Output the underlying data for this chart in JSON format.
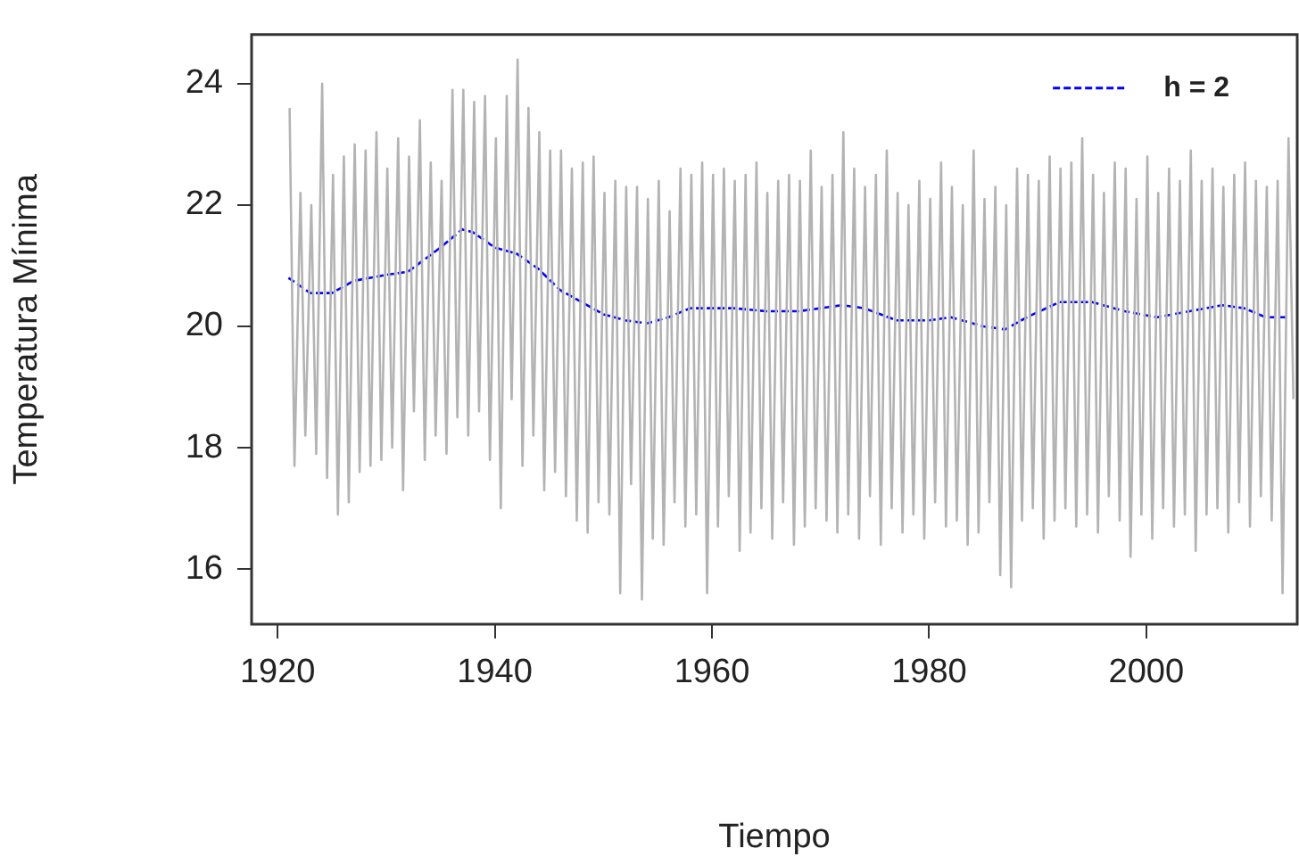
{
  "chart_data": {
    "type": "line",
    "xlabel": "Tiempo",
    "ylabel": "Temperatura Mínima",
    "xlim": [
      1917.6,
      2013.9
    ],
    "ylim": [
      15.09,
      24.81
    ],
    "xticks": [
      1920,
      1940,
      1960,
      1980,
      2000
    ],
    "yticks": [
      16,
      18,
      20,
      22,
      24
    ],
    "grid": false,
    "legend": "top right",
    "marker": "none",
    "series": [
      {
        "color": "#b3b3b3",
        "line_style": "solid",
        "x": [
          1921.1,
          1921.55,
          1922.1,
          1922.55,
          1923.1,
          1923.55,
          1924.1,
          1924.55,
          1925.1,
          1925.55,
          1926.1,
          1926.55,
          1927.1,
          1927.55,
          1928.1,
          1928.55,
          1929.1,
          1929.55,
          1930.1,
          1930.55,
          1931.1,
          1931.55,
          1932.1,
          1932.55,
          1933.1,
          1933.55,
          1934.1,
          1934.55,
          1935.1,
          1935.55,
          1936.1,
          1936.55,
          1937.1,
          1937.55,
          1938.1,
          1938.55,
          1939.1,
          1939.55,
          1940.1,
          1940.55,
          1941.1,
          1941.55,
          1942.1,
          1942.55,
          1943.1,
          1943.55,
          1944.1,
          1944.55,
          1945.1,
          1945.55,
          1946.1,
          1946.55,
          1947.1,
          1947.55,
          1948.1,
          1948.55,
          1949.1,
          1949.55,
          1950.1,
          1950.55,
          1951.1,
          1951.55,
          1952.1,
          1952.55,
          1953.1,
          1953.55,
          1954.1,
          1954.55,
          1955.1,
          1955.55,
          1956.1,
          1956.55,
          1957.1,
          1957.55,
          1958.1,
          1958.55,
          1959.1,
          1959.55,
          1960.1,
          1960.55,
          1961.1,
          1961.55,
          1962.1,
          1962.55,
          1963.1,
          1963.55,
          1964.1,
          1964.55,
          1965.1,
          1965.55,
          1966.1,
          1966.55,
          1967.1,
          1967.55,
          1968.1,
          1968.55,
          1969.1,
          1969.55,
          1970.1,
          1970.55,
          1971.1,
          1971.55,
          1972.1,
          1972.55,
          1973.1,
          1973.55,
          1974.1,
          1974.55,
          1975.1,
          1975.55,
          1976.1,
          1976.55,
          1977.1,
          1977.55,
          1978.1,
          1978.55,
          1979.1,
          1979.55,
          1980.1,
          1980.55,
          1981.1,
          1981.55,
          1982.1,
          1982.55,
          1983.1,
          1983.55,
          1984.1,
          1984.55,
          1985.1,
          1985.55,
          1986.1,
          1986.55,
          1987.1,
          1987.55,
          1988.1,
          1988.55,
          1989.1,
          1989.55,
          1990.1,
          1990.55,
          1991.1,
          1991.55,
          1992.1,
          1992.55,
          1993.1,
          1993.55,
          1994.1,
          1994.55,
          1995.1,
          1995.55,
          1996.1,
          1996.55,
          1997.1,
          1997.55,
          1998.1,
          1998.55,
          1999.1,
          1999.55,
          2000.1,
          2000.55,
          2001.1,
          2001.55,
          2002.1,
          2002.55,
          2003.1,
          2003.55,
          2004.1,
          2004.55,
          2005.1,
          2005.55,
          2006.1,
          2006.55,
          2007.1,
          2007.55,
          2008.1,
          2008.55,
          2009.1,
          2009.55,
          2010.1,
          2010.55,
          2011.1,
          2011.55,
          2012.1,
          2012.55,
          2013.1,
          2013.55
        ],
        "values": [
          23.6,
          17.7,
          22.2,
          18.2,
          22.0,
          17.9,
          24.0,
          17.5,
          22.5,
          16.9,
          22.8,
          17.1,
          23.0,
          17.6,
          22.9,
          17.7,
          23.2,
          17.8,
          22.6,
          18.0,
          23.1,
          17.3,
          22.8,
          18.6,
          23.4,
          17.8,
          22.7,
          18.2,
          22.4,
          17.9,
          23.9,
          18.5,
          23.9,
          18.2,
          23.7,
          18.6,
          23.8,
          17.8,
          23.1,
          17.0,
          23.8,
          18.8,
          24.4,
          17.7,
          23.6,
          18.2,
          23.2,
          17.3,
          22.9,
          17.6,
          22.9,
          17.2,
          22.6,
          16.8,
          22.7,
          16.6,
          22.8,
          17.1,
          22.2,
          16.9,
          22.4,
          15.6,
          22.3,
          17.4,
          22.3,
          15.5,
          22.1,
          16.5,
          22.4,
          16.4,
          21.9,
          17.1,
          22.6,
          16.7,
          22.5,
          16.9,
          22.7,
          15.6,
          22.5,
          16.7,
          22.6,
          17.2,
          22.4,
          16.3,
          22.5,
          16.6,
          22.7,
          17.0,
          22.2,
          16.5,
          22.4,
          17.1,
          22.5,
          16.4,
          22.4,
          16.7,
          22.9,
          17.0,
          22.3,
          16.8,
          22.5,
          16.6,
          23.2,
          16.9,
          22.6,
          16.5,
          22.3,
          17.2,
          22.5,
          16.4,
          22.9,
          17.0,
          22.2,
          16.6,
          22.0,
          16.9,
          22.4,
          16.5,
          22.1,
          17.1,
          22.7,
          16.7,
          22.3,
          16.8,
          22.0,
          16.4,
          22.9,
          16.6,
          22.1,
          17.1,
          22.3,
          15.9,
          22.0,
          15.7,
          22.6,
          16.8,
          22.5,
          17.0,
          22.4,
          16.5,
          22.8,
          16.8,
          22.6,
          17.0,
          22.7,
          16.7,
          23.1,
          16.9,
          22.5,
          16.6,
          22.2,
          17.2,
          22.7,
          16.8,
          22.6,
          16.2,
          22.1,
          16.9,
          22.8,
          16.5,
          22.2,
          17.0,
          22.6,
          16.7,
          22.4,
          16.9,
          22.9,
          16.3,
          22.4,
          16.9,
          22.6,
          17.0,
          22.3,
          16.6,
          22.5,
          17.1,
          22.7,
          16.7,
          22.4,
          17.2,
          22.3,
          16.8,
          22.4,
          15.6,
          23.1,
          18.8
        ]
      },
      {
        "name": "h = 2",
        "color": "#0000ff",
        "line_style": "dashed",
        "x": [
          1921,
          1923,
          1925,
          1927,
          1930,
          1932,
          1935,
          1937,
          1938,
          1940,
          1942,
          1944,
          1946,
          1950,
          1952,
          1954,
          1956,
          1958,
          1962,
          1965,
          1968,
          1972,
          1974,
          1977,
          1980,
          1982,
          1985,
          1987,
          1989,
          1992,
          1995,
          1998,
          2001,
          2004,
          2007,
          2009,
          2011,
          2013
        ],
        "values": [
          20.8,
          20.55,
          20.55,
          20.75,
          20.85,
          20.9,
          21.3,
          21.6,
          21.55,
          21.3,
          21.2,
          20.95,
          20.6,
          20.2,
          20.1,
          20.05,
          20.15,
          20.3,
          20.3,
          20.25,
          20.25,
          20.35,
          20.3,
          20.1,
          20.1,
          20.15,
          20.0,
          19.95,
          20.15,
          20.4,
          20.4,
          20.25,
          20.15,
          20.25,
          20.35,
          20.3,
          20.15,
          20.15
        ]
      }
    ]
  }
}
